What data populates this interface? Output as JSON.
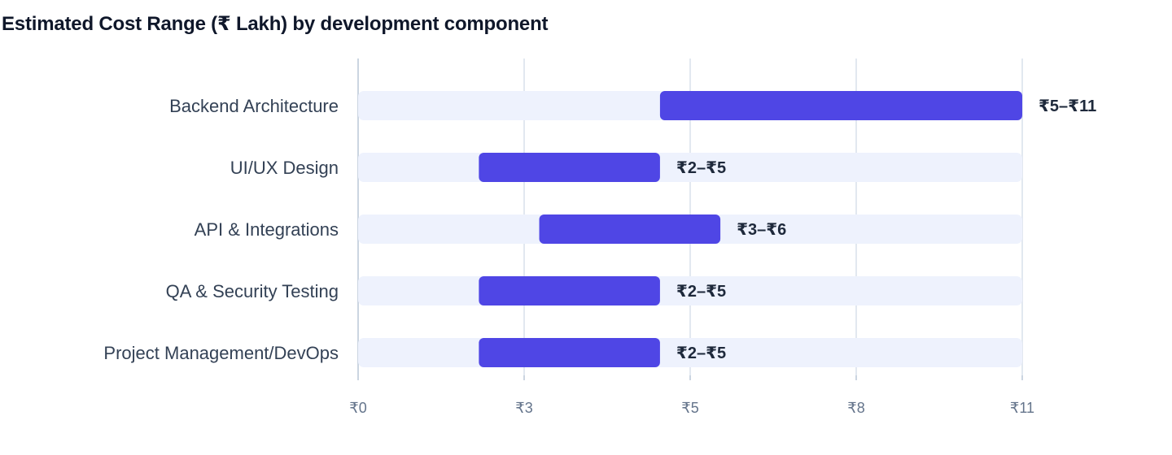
{
  "chart_data": {
    "type": "bar",
    "orientation": "horizontal",
    "subtype": "range",
    "title": "Estimated Cost Range (₹ Lakh) by development component",
    "xlabel": "",
    "ylabel": "",
    "categories": [
      "Backend Architecture",
      "UI/UX Design",
      "API & Integrations",
      "QA & Security Testing",
      "Project Management/DevOps"
    ],
    "ranges": [
      {
        "low": 5,
        "high": 11,
        "label": "₹5–₹11"
      },
      {
        "low": 2,
        "high": 5,
        "label": "₹2–₹5"
      },
      {
        "low": 3,
        "high": 6,
        "label": "₹3–₹6"
      },
      {
        "low": 2,
        "high": 5,
        "label": "₹2–₹5"
      },
      {
        "low": 2,
        "high": 5,
        "label": "₹2–₹5"
      }
    ],
    "xlim": [
      0,
      11
    ],
    "xticks": [
      "₹0",
      "₹3",
      "₹5",
      "₹8",
      "₹11"
    ],
    "grid": "vertical",
    "legend": "none",
    "colors": {
      "range_bar": "#4f46e5",
      "track": "#eef2fd",
      "grid": "#e2e8f0",
      "axis": "#cbd5e1"
    }
  }
}
